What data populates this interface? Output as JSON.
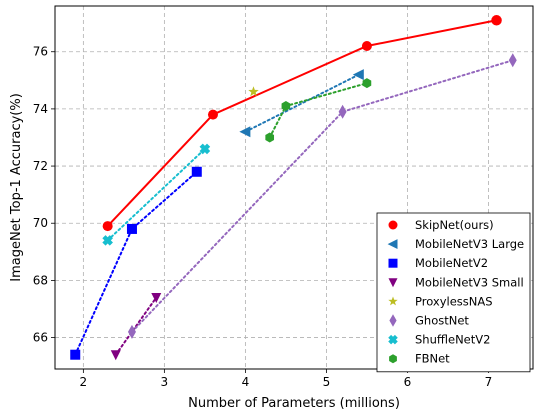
{
  "chart_data": {
    "type": "scatter",
    "title": "",
    "xlabel": "Number of Parameters (millions)",
    "ylabel": "ImageNet Top-1 Accuracy(%)",
    "xlim": [
      1.65,
      7.55
    ],
    "ylim": [
      64.9,
      77.6
    ],
    "xticks": [
      2,
      3,
      4,
      5,
      6,
      7
    ],
    "yticks": [
      66,
      68,
      70,
      72,
      74,
      76
    ],
    "grid": true,
    "legend_position": "bottom-right",
    "series": [
      {
        "name": "SkipNet(ours)",
        "color": "#ff0000",
        "marker": "circle",
        "line": "solid",
        "points": [
          [
            2.3,
            69.9
          ],
          [
            3.6,
            73.8
          ],
          [
            5.5,
            76.2
          ],
          [
            7.1,
            77.1
          ]
        ]
      },
      {
        "name": "MobileNetV3 Large",
        "color": "#1f77b4",
        "marker": "triangle-left",
        "line": "dotted",
        "points": [
          [
            4.0,
            73.2
          ],
          [
            5.4,
            75.2
          ]
        ]
      },
      {
        "name": "MobileNetV2",
        "color": "#0000ff",
        "marker": "square",
        "line": "dotted",
        "points": [
          [
            1.9,
            65.4
          ],
          [
            2.6,
            69.8
          ],
          [
            3.4,
            71.8
          ]
        ]
      },
      {
        "name": "MobileNetV3 Small",
        "color": "#800080",
        "marker": "triangle-down",
        "line": "dotted",
        "points": [
          [
            2.4,
            65.4
          ],
          [
            2.9,
            67.4
          ]
        ]
      },
      {
        "name": "ProxylessNAS",
        "color": "#bcbd22",
        "marker": "star",
        "line": "none",
        "points": [
          [
            4.1,
            74.6
          ]
        ]
      },
      {
        "name": "GhostNet",
        "color": "#9467bd",
        "marker": "diamond",
        "line": "dotted",
        "points": [
          [
            2.6,
            66.2
          ],
          [
            5.2,
            73.9
          ],
          [
            7.3,
            75.7
          ]
        ]
      },
      {
        "name": "ShuffleNetV2",
        "color": "#17becf",
        "marker": "x",
        "line": "dotted",
        "points": [
          [
            2.3,
            69.4
          ],
          [
            3.5,
            72.6
          ]
        ]
      },
      {
        "name": "FBNet",
        "color": "#2ca02c",
        "marker": "hexagon",
        "line": "dotted",
        "points": [
          [
            4.3,
            73.0
          ],
          [
            4.5,
            74.1
          ],
          [
            5.5,
            74.9
          ]
        ]
      }
    ]
  }
}
